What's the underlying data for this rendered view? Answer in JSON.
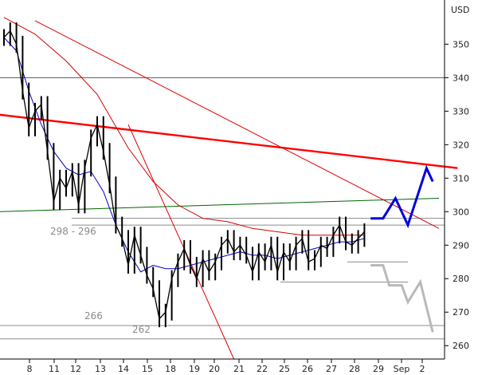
{
  "chart_data": {
    "type": "line",
    "unit": "USD",
    "ylim": [
      256,
      362
    ],
    "x_tick_labels": [
      "8",
      "11",
      "12",
      "13",
      "14",
      "15",
      "18",
      "19",
      "20",
      "21",
      "22",
      "25",
      "26",
      "27",
      "28",
      "29",
      "Sep",
      "2"
    ],
    "y_ticks": [
      260,
      270,
      280,
      290,
      300,
      310,
      320,
      330,
      340,
      350
    ],
    "grid": false,
    "level_labels": [
      {
        "text": "298 - 296",
        "value": 297
      },
      {
        "text": "266",
        "value": 266
      },
      {
        "text": "262",
        "value": 262
      }
    ],
    "horizontal_levels": [
      340,
      298,
      296,
      285,
      279,
      266,
      262
    ],
    "price_series": [
      [
        0,
        352
      ],
      [
        1,
        354
      ],
      [
        2,
        350
      ],
      [
        3,
        336
      ],
      [
        4,
        325
      ],
      [
        5,
        330
      ],
      [
        6,
        332
      ],
      [
        7,
        318
      ],
      [
        8,
        303
      ],
      [
        9,
        310
      ],
      [
        10,
        307
      ],
      [
        11,
        312
      ],
      [
        12,
        302
      ],
      [
        13,
        313
      ],
      [
        14,
        322
      ],
      [
        15,
        326
      ],
      [
        16,
        318
      ],
      [
        17,
        308
      ],
      [
        18,
        296
      ],
      [
        19,
        292
      ],
      [
        20,
        284
      ],
      [
        21,
        293
      ],
      [
        22,
        287
      ],
      [
        23,
        281
      ],
      [
        24,
        277
      ],
      [
        25,
        268
      ],
      [
        26,
        270
      ],
      [
        27,
        280
      ],
      [
        28,
        285
      ],
      [
        29,
        289
      ],
      [
        30,
        284
      ],
      [
        31,
        280
      ],
      [
        32,
        286
      ],
      [
        33,
        282
      ],
      [
        34,
        285
      ],
      [
        35,
        290
      ],
      [
        36,
        292
      ],
      [
        37,
        288
      ],
      [
        38,
        290
      ],
      [
        39,
        287
      ],
      [
        40,
        282
      ],
      [
        41,
        288
      ],
      [
        42,
        285
      ],
      [
        43,
        290
      ],
      [
        44,
        282
      ],
      [
        45,
        288
      ],
      [
        46,
        285
      ],
      [
        47,
        290
      ],
      [
        48,
        292
      ],
      [
        49,
        285
      ],
      [
        50,
        286
      ],
      [
        51,
        290
      ],
      [
        52,
        289
      ],
      [
        53,
        293
      ],
      [
        54,
        296
      ],
      [
        55,
        291
      ],
      [
        56,
        290
      ],
      [
        57,
        292
      ],
      [
        58,
        294
      ]
    ],
    "sma_short": [
      [
        0,
        352
      ],
      [
        2,
        348
      ],
      [
        4,
        336
      ],
      [
        6,
        326
      ],
      [
        8,
        318
      ],
      [
        10,
        313
      ],
      [
        12,
        311
      ],
      [
        14,
        312
      ],
      [
        16,
        306
      ],
      [
        18,
        296
      ],
      [
        20,
        288
      ],
      [
        22,
        282
      ],
      [
        24,
        284
      ],
      [
        26,
        283
      ],
      [
        28,
        283
      ],
      [
        30,
        284
      ],
      [
        32,
        285
      ],
      [
        34,
        286
      ],
      [
        36,
        287
      ],
      [
        38,
        288
      ],
      [
        40,
        287
      ],
      [
        42,
        287
      ],
      [
        44,
        286
      ],
      [
        46,
        287
      ],
      [
        48,
        288
      ],
      [
        50,
        289
      ],
      [
        52,
        290
      ],
      [
        54,
        291
      ],
      [
        56,
        291
      ],
      [
        58,
        292
      ]
    ],
    "sma_long": [
      [
        0,
        358
      ],
      [
        5,
        353
      ],
      [
        10,
        345
      ],
      [
        15,
        335
      ],
      [
        20,
        319
      ],
      [
        24,
        309
      ],
      [
        28,
        302
      ],
      [
        32,
        298
      ],
      [
        36,
        297
      ],
      [
        40,
        295
      ],
      [
        44,
        294
      ],
      [
        48,
        293
      ],
      [
        52,
        293
      ],
      [
        56,
        293
      ],
      [
        58,
        293
      ]
    ],
    "trendlines": [
      {
        "color": "#ff0000",
        "width": 2.4,
        "points": [
          [
            -1,
            329
          ],
          [
            73,
            313
          ]
        ]
      },
      {
        "color": "#e00000",
        "width": 1,
        "points": [
          [
            5,
            357
          ],
          [
            70,
            295
          ]
        ]
      },
      {
        "color": "#e00000",
        "width": 1,
        "points": [
          [
            20,
            326
          ],
          [
            37,
            256
          ]
        ]
      },
      {
        "color": "#006400",
        "width": 1,
        "points": [
          [
            -1,
            300
          ],
          [
            70,
            304
          ]
        ]
      }
    ],
    "forecast_bullish": [
      [
        59,
        298
      ],
      [
        61,
        298
      ],
      [
        63,
        304
      ],
      [
        65,
        296
      ],
      [
        68,
        313
      ],
      [
        69,
        309
      ]
    ],
    "forecast_bearish": [
      [
        59,
        284
      ],
      [
        61,
        284
      ],
      [
        62,
        278
      ],
      [
        64,
        278
      ],
      [
        65,
        273
      ],
      [
        67,
        279
      ],
      [
        69,
        264
      ]
    ]
  }
}
